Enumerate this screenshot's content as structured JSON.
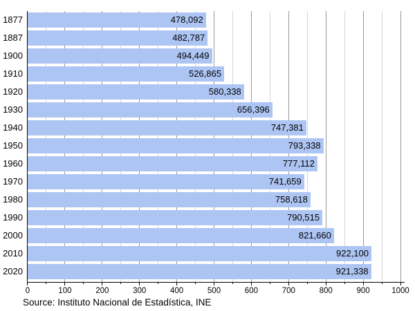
{
  "chart_data": {
    "type": "bar",
    "orientation": "horizontal",
    "title": "",
    "xlabel": "",
    "ylabel": "",
    "legend": "none",
    "grid": "vertical",
    "x_axis_unit": "thousands",
    "xlim": [
      0,
      1000000
    ],
    "x_major_tick_step": 100000,
    "x_minor_tick_step": 50000,
    "x_tick_labels": [
      "0",
      "100",
      "200",
      "300",
      "400",
      "500",
      "600",
      "700",
      "800",
      "900",
      "1000"
    ],
    "categories": [
      "1877",
      "1887",
      "1900",
      "1910",
      "1920",
      "1930",
      "1940",
      "1950",
      "1960",
      "1970",
      "1980",
      "1990",
      "2000",
      "2010",
      "2020"
    ],
    "values": [
      478092,
      482787,
      494449,
      526865,
      580338,
      656396,
      747381,
      793338,
      777112,
      741659,
      758618,
      790515,
      821660,
      922100,
      921338
    ],
    "value_labels": [
      "478,092",
      "482,787",
      "494,449",
      "526,865",
      "580,338",
      "656,396",
      "747,381",
      "793,338",
      "777,112",
      "741,659",
      "758,618",
      "790,515",
      "821,660",
      "922,100",
      "921,338"
    ]
  },
  "colors": {
    "bar": "#adc5f3",
    "grid_minor": "#d6d6d6",
    "grid_major": "#979797",
    "axis": "#000000",
    "text": "#000000",
    "background": "#ffffff"
  },
  "source": {
    "label": "Source: Instituto Nacional de Estadística, INE"
  }
}
